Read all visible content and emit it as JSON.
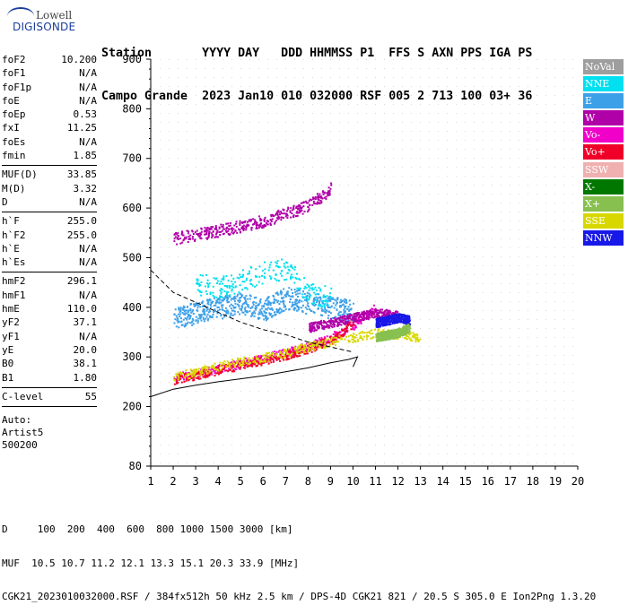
{
  "logo": {
    "line1": "Lowell",
    "line2": "DIGISONDE"
  },
  "header": {
    "line1": "Station       YYYY DAY   DDD HHMMSS P1  FFS S AXN PPS IGA PS",
    "line2": "Campo Grande  2023 Jan10 010 032000 RSF 005 2 713 100 03+ 36"
  },
  "params": [
    {
      "name": "foF2",
      "value": "10.200"
    },
    {
      "name": "foF1",
      "value": "N/A"
    },
    {
      "name": "foF1p",
      "value": "N/A"
    },
    {
      "name": "foE",
      "value": "N/A"
    },
    {
      "name": "foEp",
      "value": "0.53"
    },
    {
      "name": "fxI",
      "value": "11.25"
    },
    {
      "name": "foEs",
      "value": "N/A"
    },
    {
      "name": "fmin",
      "value": "1.85"
    },
    {
      "sep": true
    },
    {
      "name": "MUF(D)",
      "value": "33.85"
    },
    {
      "name": "M(D)",
      "value": "3.32"
    },
    {
      "name": "D",
      "value": "N/A"
    },
    {
      "sep": true
    },
    {
      "name": "h`F",
      "value": "255.0"
    },
    {
      "name": "h`F2",
      "value": "255.0"
    },
    {
      "name": "h`E",
      "value": "N/A"
    },
    {
      "name": "h`Es",
      "value": "N/A"
    },
    {
      "sep": true
    },
    {
      "name": "hmF2",
      "value": "296.1"
    },
    {
      "name": "hmF1",
      "value": "N/A"
    },
    {
      "name": "hmE",
      "value": "110.0"
    },
    {
      "name": "yF2",
      "value": "37.1"
    },
    {
      "name": "yF1",
      "value": "N/A"
    },
    {
      "name": "yE",
      "value": "20.0"
    },
    {
      "name": "B0",
      "value": "38.1"
    },
    {
      "name": "B1",
      "value": "1.80"
    },
    {
      "sep": true
    },
    {
      "name": "C-level",
      "value": "55"
    },
    {
      "sep": true
    }
  ],
  "auto": [
    "Auto:",
    "Artist5",
    "500200"
  ],
  "legend": [
    {
      "label": "NoVal",
      "color": "#9e9e9e"
    },
    {
      "label": "NNE",
      "color": "#00e0f0"
    },
    {
      "label": "E",
      "color": "#3ca0e8"
    },
    {
      "label": "W",
      "color": "#b000a8"
    },
    {
      "label": "Vo-",
      "color": "#f000c8"
    },
    {
      "label": "Vo+",
      "color": "#f00028"
    },
    {
      "label": "SSW",
      "color": "#f0b0b0"
    },
    {
      "label": "X-",
      "color": "#007800"
    },
    {
      "label": "X+",
      "color": "#88c050"
    },
    {
      "label": "SSE",
      "color": "#d8d800"
    },
    {
      "label": "NNW",
      "color": "#1818e8"
    }
  ],
  "footer": {
    "line1": "D     100  200  400  600  800 1000 1500 3000 [km]",
    "line2": "MUF  10.5 10.7 11.2 12.1 13.3 15.1 20.3 33.9 [MHz]",
    "line3": "CGK21_2023010032000.RSF / 384fx512h 50 kHz 2.5 km / DPS-4D CGK21 821 / 20.5 S 305.0 E Ion2Png 1.3.20"
  },
  "chart_data": {
    "type": "scatter",
    "xlim": [
      1,
      20
    ],
    "ylim": [
      80,
      900
    ],
    "xticks": [
      1,
      2,
      3,
      4,
      5,
      6,
      7,
      8,
      9,
      10,
      11,
      12,
      13,
      14,
      15,
      16,
      17,
      18,
      19,
      20
    ],
    "yticks": [
      80,
      200,
      300,
      400,
      500,
      600,
      700,
      800,
      900
    ],
    "grid": true,
    "series": [
      {
        "name": "Vo-",
        "color": "#f000c8",
        "points": [
          [
            2,
            258
          ],
          [
            3,
            268
          ],
          [
            4,
            278
          ],
          [
            5,
            288
          ],
          [
            6,
            298
          ],
          [
            7,
            310
          ],
          [
            8,
            322
          ],
          [
            9,
            340
          ],
          [
            10,
            365
          ],
          [
            10.5,
            385
          ],
          [
            11,
            400
          ]
        ]
      },
      {
        "name": "Vo+",
        "color": "#f00028",
        "points": [
          [
            2,
            255
          ],
          [
            3,
            265
          ],
          [
            4,
            275
          ],
          [
            5,
            285
          ],
          [
            6,
            295
          ],
          [
            7,
            305
          ],
          [
            8,
            318
          ],
          [
            9,
            335
          ],
          [
            9.5,
            350
          ],
          [
            10,
            372
          ]
        ]
      },
      {
        "name": "SSE",
        "color": "#d8d800",
        "points": [
          [
            2,
            262
          ],
          [
            3,
            270
          ],
          [
            4,
            282
          ],
          [
            5,
            292
          ],
          [
            6,
            300
          ],
          [
            7,
            308
          ],
          [
            8,
            322
          ],
          [
            9,
            332
          ],
          [
            10,
            340
          ],
          [
            11,
            350
          ],
          [
            12,
            345
          ],
          [
            13,
            340
          ]
        ]
      },
      {
        "name": "E",
        "color": "#3ca0e8",
        "points": [
          [
            2,
            380
          ],
          [
            3,
            390
          ],
          [
            4,
            400
          ],
          [
            5,
            410
          ],
          [
            6,
            395
          ],
          [
            7,
            420
          ],
          [
            8,
            410
          ],
          [
            9,
            400
          ],
          [
            10,
            395
          ]
        ]
      },
      {
        "name": "NNE",
        "color": "#00e0f0",
        "points": [
          [
            3,
            450
          ],
          [
            4,
            440
          ],
          [
            6,
            470
          ],
          [
            7,
            480
          ],
          [
            8,
            430
          ],
          [
            9,
            420
          ]
        ]
      },
      {
        "name": "W",
        "color": "#b000a8",
        "points": [
          [
            8,
            360
          ],
          [
            9,
            370
          ],
          [
            10,
            380
          ],
          [
            11,
            390
          ],
          [
            12,
            385
          ]
        ]
      },
      {
        "name": "NNW",
        "color": "#1818e8",
        "points": [
          [
            11,
            370
          ],
          [
            12,
            380
          ],
          [
            12.5,
            375
          ]
        ]
      },
      {
        "name": "X+",
        "color": "#88c050",
        "points": [
          [
            11,
            340
          ],
          [
            12,
            350
          ],
          [
            12.5,
            360
          ]
        ]
      },
      {
        "name": "Vo- (2 hops)",
        "color": "#b000a8",
        "points": [
          [
            2,
            540
          ],
          [
            4,
            555
          ],
          [
            6,
            575
          ],
          [
            8,
            605
          ],
          [
            9,
            640
          ]
        ]
      }
    ],
    "profile_curve": [
      [
        1,
        220
      ],
      [
        2,
        235
      ],
      [
        3,
        243
      ],
      [
        4,
        250
      ],
      [
        5,
        256
      ],
      [
        6,
        262
      ],
      [
        7,
        270
      ],
      [
        8,
        278
      ],
      [
        9,
        288
      ],
      [
        9.8,
        295
      ],
      [
        10.2,
        300
      ],
      [
        10.0,
        280
      ]
    ],
    "muf_curve": [
      [
        1,
        475
      ],
      [
        2,
        430
      ],
      [
        3,
        410
      ],
      [
        4,
        390
      ],
      [
        5,
        370
      ],
      [
        6,
        355
      ],
      [
        7,
        345
      ],
      [
        8,
        330
      ],
      [
        9,
        320
      ],
      [
        10,
        310
      ]
    ]
  }
}
